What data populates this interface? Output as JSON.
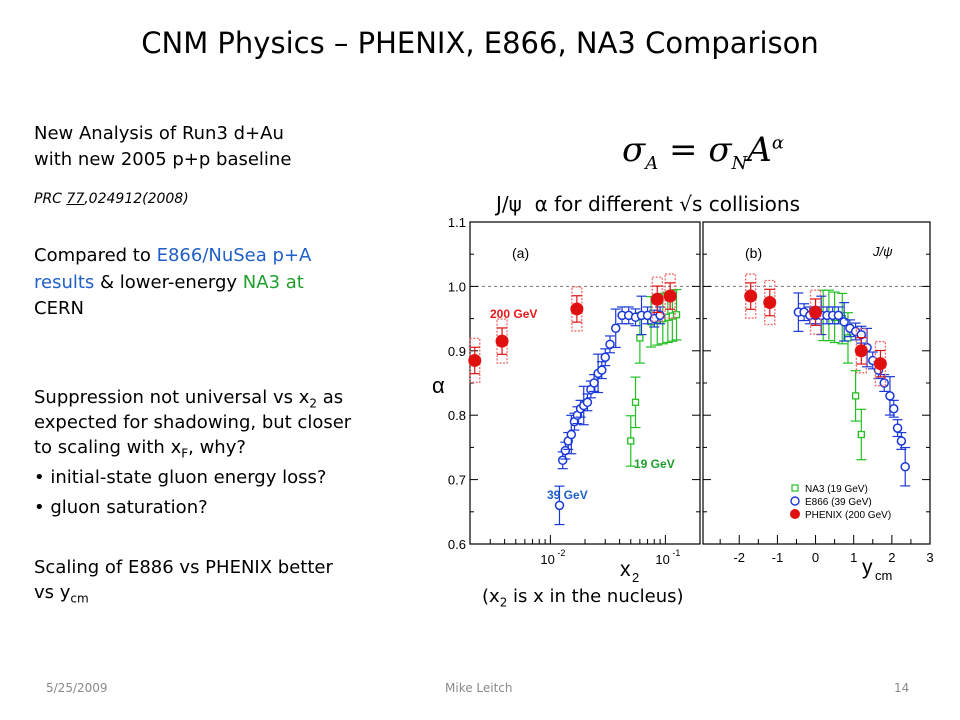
{
  "title": "CNM Physics – PHENIX, E866, NA3 Comparison",
  "left": {
    "line1": "New Analysis of Run3 d+Au",
    "line2": "with new 2005 p+p baseline",
    "ref_prefix": "PRC ",
    "ref_vol": "77",
    "ref_rest": ",024912(2008)",
    "cmp_a": "Compared to ",
    "cmp_e866": "E866/NuSea p+A",
    "cmp_results": "results",
    "cmp_b": " & lower-energy ",
    "cmp_na3": "NA3 at",
    "cmp_cern": "CERN",
    "sup1": "Suppression not universal vs x",
    "sup1_sub": "2",
    "sup1_end": " as",
    "sup2": "expected for shadowing, but closer",
    "sup3": "to scaling with x",
    "sup3_sub": "F",
    "sup3_end": ", why?",
    "bullet1": "• initial-state gluon energy loss?",
    "bullet2": "• gluon saturation?",
    "scale1": "Scaling of E886 vs PHENIX better",
    "scale2": "vs y",
    "scale2_sub": "cm"
  },
  "formula": {
    "sigma": "σ",
    "sub_a": "A",
    "eq": " = ",
    "sub_n": "N",
    "a": "A",
    "sup": "α"
  },
  "plot_title": {
    "jpsi": "J/ψ",
    "rest": "α for different √s collisions"
  },
  "plot_note": {
    "a": "(x",
    "sub": "2",
    "b": " is x in the nucleus)"
  },
  "footer": {
    "date": "5/25/2009",
    "author": "Mike Leitch",
    "page": "14"
  },
  "chart_data": {
    "type": "scatter",
    "ylabel": "α",
    "ylim": [
      0.6,
      1.1
    ],
    "yticks": [
      "0.6",
      "0.7",
      "0.8",
      "0.9",
      "1.0",
      "1.1"
    ],
    "panels": [
      {
        "label": "(a)",
        "xlabel_main": "x",
        "xlabel_sub": "2",
        "xscale": "log",
        "xlim": [
          0.002,
          0.2
        ],
        "xtick_labels": [
          "10",
          "-2",
          "10",
          "-1"
        ],
        "annotations": [
          "200 GeV",
          "39 GeV",
          "19 GeV"
        ],
        "series": [
          {
            "name": "NA3 (19 GeV)",
            "color": "#22c022",
            "marker": "square",
            "x": [
              0.05,
              0.055,
              0.06,
              0.075,
              0.085,
              0.095,
              0.105,
              0.115,
              0.125
            ],
            "y": [
              0.76,
              0.82,
              0.92,
              0.945,
              0.948,
              0.95,
              0.952,
              0.954,
              0.956
            ]
          },
          {
            "name": "E866 (39 GeV)",
            "color": "#1a38d8",
            "marker": "circle",
            "x": [
              0.012,
              0.0128,
              0.0135,
              0.0143,
              0.0152,
              0.0162,
              0.0172,
              0.0183,
              0.0195,
              0.021,
              0.0225,
              0.024,
              0.026,
              0.028,
              0.03,
              0.033,
              0.037,
              0.042,
              0.048,
              0.055,
              0.062,
              0.07,
              0.08,
              0.09
            ],
            "y": [
              0.66,
              0.73,
              0.745,
              0.76,
              0.77,
              0.79,
              0.8,
              0.81,
              0.815,
              0.82,
              0.84,
              0.85,
              0.865,
              0.87,
              0.89,
              0.91,
              0.935,
              0.955,
              0.955,
              0.952,
              0.955,
              0.955,
              0.95,
              0.955
            ]
          },
          {
            "name": "PHENIX (200 GeV)",
            "color": "#e01010",
            "marker": "filled-circle",
            "x": [
              0.0022,
              0.0038,
              0.017,
              0.085,
              0.11
            ],
            "y": [
              0.885,
              0.915,
              0.965,
              0.98,
              0.985
            ]
          }
        ]
      },
      {
        "label": "(b)",
        "particle": "J/ψ",
        "xlabel_main": "y",
        "xlabel_sub": "cm",
        "xlim": [
          -3,
          3
        ],
        "xticks": [
          "-2",
          "-1",
          "0",
          "1",
          "2",
          "3"
        ],
        "legend": [
          "NA3 (19 GeV)",
          "E866 (39 GeV)",
          "PHENIX (200 GeV)"
        ],
        "legend_position": "bottom-right",
        "series": [
          {
            "name": "NA3 (19 GeV)",
            "color": "#22c022",
            "marker": "square",
            "x": [
              0.2,
              0.35,
              0.5,
              0.7,
              0.85,
              1.05,
              1.2
            ],
            "y": [
              0.955,
              0.955,
              0.952,
              0.95,
              0.92,
              0.83,
              0.77
            ]
          },
          {
            "name": "E866 (39 GeV)",
            "color": "#1a38d8",
            "marker": "circle",
            "x": [
              -0.45,
              -0.3,
              -0.15,
              0.0,
              0.15,
              0.3,
              0.45,
              0.6,
              0.75,
              0.9,
              1.05,
              1.2,
              1.35,
              1.5,
              1.65,
              1.8,
              1.95,
              2.05,
              2.15,
              2.25,
              2.35
            ],
            "y": [
              0.96,
              0.96,
              0.955,
              0.955,
              0.955,
              0.955,
              0.955,
              0.955,
              0.945,
              0.935,
              0.93,
              0.925,
              0.905,
              0.885,
              0.87,
              0.85,
              0.83,
              0.81,
              0.78,
              0.76,
              0.72
            ]
          },
          {
            "name": "PHENIX (200 GeV)",
            "color": "#e01010",
            "marker": "filled-circle",
            "x": [
              -1.7,
              -1.2,
              0.0,
              1.2,
              1.7
            ],
            "y": [
              0.985,
              0.975,
              0.96,
              0.9,
              0.88
            ]
          }
        ]
      }
    ]
  }
}
